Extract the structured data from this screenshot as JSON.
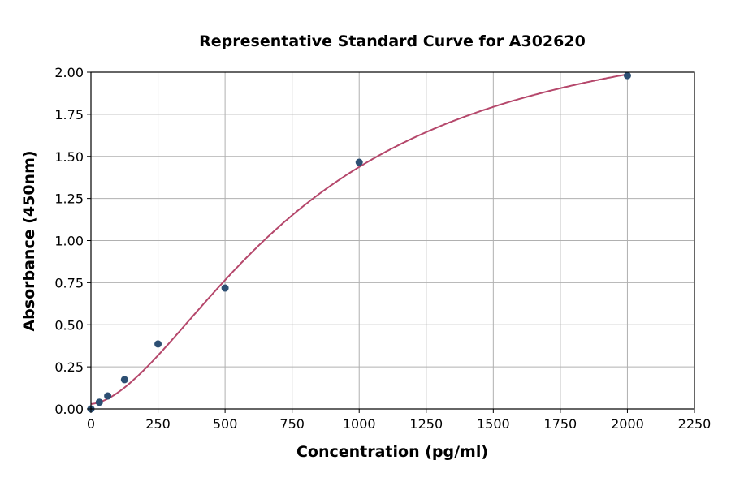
{
  "chart_data": {
    "type": "scatter",
    "title": "Representative Standard Curve for A302620",
    "xlabel": "Concentration (pg/ml)",
    "ylabel": "Absorbance (450nm)",
    "xlim": [
      0,
      2250
    ],
    "ylim": [
      0,
      2.0
    ],
    "xticks": [
      "0",
      "250",
      "500",
      "750",
      "1000",
      "1250",
      "1500",
      "1750",
      "2000",
      "2250"
    ],
    "yticks": [
      "0.00",
      "0.25",
      "0.50",
      "0.75",
      "1.00",
      "1.25",
      "1.50",
      "1.75",
      "2.00"
    ],
    "grid": true,
    "series": [
      {
        "x": [
          0,
          31.25,
          62.5,
          125,
          250,
          500,
          1000,
          2000
        ],
        "y": [
          0.0,
          0.04,
          0.077,
          0.174,
          0.386,
          0.718,
          1.465,
          1.98
        ],
        "color": "#2d4f73"
      }
    ],
    "fit_curve": {
      "type": "4PL",
      "x_range": [
        0,
        2000
      ],
      "color": "#b5476b"
    }
  }
}
